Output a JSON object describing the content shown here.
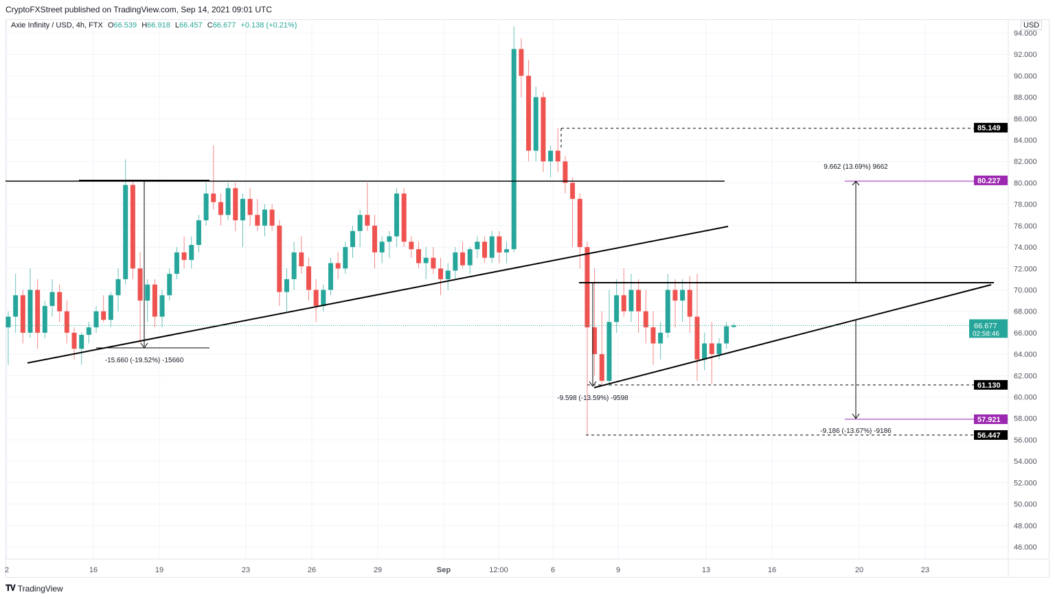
{
  "header": {
    "published": "CryptoFXStreet published on TradingView.com, Sep 14, 2021 09:01 UTC"
  },
  "legend": {
    "symbol": "Axie Infinity / USD, 4h, FTX",
    "open_label": "O",
    "open": "66.539",
    "high_label": "H",
    "high": "66.918",
    "low_label": "L",
    "low": "66.457",
    "close_label": "C",
    "close": "66.677",
    "change": "+0.138 (+0.21%)"
  },
  "footer": {
    "brand": "TradingView",
    "logo": "tv-logo-icon"
  },
  "colors": {
    "up": "#26a69a",
    "down": "#ef5350",
    "target": "#9c27b0",
    "level": "#000000",
    "current": "#26a69a"
  },
  "chart_data": {
    "type": "candlestick",
    "currency": "USD",
    "ylim": [
      45,
      95
    ],
    "y_ticks": [
      "46.000",
      "48.000",
      "50.000",
      "52.000",
      "54.000",
      "56.000",
      "58.000",
      "60.000",
      "62.000",
      "64.000",
      "66.000",
      "68.000",
      "70.000",
      "72.000",
      "74.000",
      "76.000",
      "78.000",
      "80.000",
      "82.000",
      "84.000",
      "86.000",
      "88.000",
      "90.000",
      "92.000",
      "94.000"
    ],
    "x_ticks": [
      "2",
      "16",
      "19",
      "23",
      "26",
      "29",
      "Sep",
      "12:00",
      "6",
      "9",
      "13",
      "16",
      "20",
      "23"
    ],
    "grid": true,
    "price_tags": [
      {
        "value": "85.149",
        "kind": "level"
      },
      {
        "value": "80.227",
        "kind": "target"
      },
      {
        "value": "61.130",
        "kind": "level"
      },
      {
        "value": "57.921",
        "kind": "target"
      },
      {
        "value": "56.447",
        "kind": "level"
      }
    ],
    "current_price": {
      "value": "66.677",
      "countdown": "02:58:46"
    },
    "measurements": [
      "-15.660 (-19.52%) -15660",
      "-9.598 (-13.59%) -9598",
      "9.662 (13.69%) 9662",
      "-9.186 (-13.67%) -9186"
    ],
    "ohlc": [
      [
        66.5,
        68,
        63,
        67.5
      ],
      [
        67.5,
        71.5,
        66,
        69.5
      ],
      [
        69.5,
        70,
        65,
        66
      ],
      [
        66,
        72,
        65.5,
        70
      ],
      [
        70,
        71,
        64.5,
        66
      ],
      [
        66,
        69,
        65.5,
        68.5
      ],
      [
        68.5,
        71,
        67.5,
        69.8
      ],
      [
        69.8,
        70.5,
        67,
        68
      ],
      [
        68,
        69,
        65,
        66
      ],
      [
        66,
        66.5,
        63.5,
        64.5
      ],
      [
        64.5,
        66,
        63,
        65.8
      ],
      [
        65.8,
        67,
        65,
        66.5
      ],
      [
        66.5,
        68.5,
        66,
        68
      ],
      [
        68,
        69.5,
        67,
        67.2
      ],
      [
        67.2,
        69.8,
        66.5,
        69.5
      ],
      [
        69.5,
        72,
        68,
        71
      ],
      [
        71,
        82.2,
        70.5,
        79.8
      ],
      [
        79.8,
        80.3,
        71,
        72
      ],
      [
        72,
        73.5,
        65,
        69
      ],
      [
        69,
        71,
        67,
        70.5
      ],
      [
        70.5,
        71,
        66.5,
        67.5
      ],
      [
        67.5,
        70,
        66.5,
        69.5
      ],
      [
        69.5,
        72,
        69,
        71.5
      ],
      [
        71.5,
        74,
        71,
        73.5
      ],
      [
        73.5,
        75,
        72,
        72.8
      ],
      [
        72.8,
        75,
        72,
        74.2
      ],
      [
        74.2,
        77,
        73.5,
        76.5
      ],
      [
        76.5,
        80,
        76,
        79
      ],
      [
        79,
        83.5,
        77.5,
        78.2
      ],
      [
        78.2,
        79,
        76,
        77
      ],
      [
        77,
        80,
        76.5,
        79.5
      ],
      [
        79.5,
        80,
        75.5,
        76.5
      ],
      [
        76.5,
        79,
        74,
        78.5
      ],
      [
        78.5,
        79.5,
        76,
        77
      ],
      [
        77,
        78.5,
        75.5,
        76
      ],
      [
        76,
        78,
        75,
        77.5
      ],
      [
        77.5,
        78,
        75.5,
        76
      ],
      [
        76,
        76.5,
        68.5,
        69.8
      ],
      [
        69.8,
        72,
        68,
        71
      ],
      [
        71,
        74.5,
        70,
        73.5
      ],
      [
        73.5,
        75,
        71.5,
        72.2
      ],
      [
        72.2,
        73,
        69,
        70
      ],
      [
        70,
        71,
        67,
        68.5
      ],
      [
        68.5,
        70.5,
        68,
        70
      ],
      [
        70,
        73,
        69.5,
        72.5
      ],
      [
        72.5,
        73.5,
        71,
        72
      ],
      [
        72,
        74.5,
        71.5,
        74
      ],
      [
        74,
        76,
        73,
        75.5
      ],
      [
        75.5,
        77.5,
        74,
        77
      ],
      [
        77,
        80,
        75.5,
        76
      ],
      [
        76,
        77,
        72,
        73.5
      ],
      [
        73.5,
        75,
        72.5,
        74.5
      ],
      [
        74.5,
        75.5,
        73,
        75
      ],
      [
        75,
        79.5,
        74,
        79
      ],
      [
        79,
        79.5,
        74,
        74.5
      ],
      [
        74.5,
        75,
        73,
        73.8
      ],
      [
        73.8,
        74.5,
        72,
        72.5
      ],
      [
        72.5,
        74,
        71,
        73
      ],
      [
        73,
        74,
        71.5,
        72
      ],
      [
        72,
        73,
        69.5,
        71
      ],
      [
        71,
        72.5,
        70,
        71.8
      ],
      [
        71.8,
        74,
        71,
        73.5
      ],
      [
        73.5,
        74.5,
        72,
        72.3
      ],
      [
        72.3,
        74,
        71.5,
        73.8
      ],
      [
        73.8,
        75,
        73,
        74.5
      ],
      [
        74.5,
        75,
        72.5,
        73
      ],
      [
        73,
        75.5,
        72.5,
        75
      ],
      [
        75,
        75.5,
        72.5,
        73.5
      ],
      [
        73.5,
        74.5,
        72.5,
        73.8
      ],
      [
        73.8,
        94.6,
        73.5,
        92.5
      ],
      [
        92.5,
        93.5,
        88,
        90
      ],
      [
        90,
        91.5,
        82,
        83
      ],
      [
        83,
        89,
        82,
        88
      ],
      [
        88,
        88.5,
        81,
        82
      ],
      [
        82,
        83.5,
        80.5,
        83
      ],
      [
        83,
        85.1,
        81,
        82
      ],
      [
        82,
        82.5,
        79,
        80
      ],
      [
        80,
        80.5,
        74,
        78.5
      ],
      [
        78.5,
        79,
        72,
        74
      ],
      [
        74,
        74.5,
        56.45,
        66.5
      ],
      [
        66.5,
        72,
        62,
        64
      ],
      [
        64,
        68,
        61.13,
        61.5
      ],
      [
        61.5,
        70,
        61,
        67
      ],
      [
        67,
        71,
        66,
        69.5
      ],
      [
        69.5,
        72,
        67.5,
        68
      ],
      [
        68,
        71.5,
        67,
        70
      ],
      [
        70,
        71,
        66,
        68
      ],
      [
        68,
        70,
        65,
        66.5
      ],
      [
        66.5,
        68,
        63,
        65
      ],
      [
        65,
        67,
        63.5,
        66
      ],
      [
        66,
        71.5,
        65.5,
        70
      ],
      [
        70,
        71,
        66.5,
        69
      ],
      [
        69,
        71,
        67,
        70
      ],
      [
        70,
        71.3,
        66,
        67.5
      ],
      [
        67.5,
        71.5,
        61.5,
        63.5
      ],
      [
        63.5,
        66,
        62.5,
        65
      ],
      [
        65,
        67,
        61.2,
        64
      ],
      [
        64,
        65.5,
        63.5,
        65
      ],
      [
        65,
        67,
        64.5,
        66.6
      ],
      [
        66.539,
        66.918,
        66.457,
        66.677
      ]
    ]
  }
}
